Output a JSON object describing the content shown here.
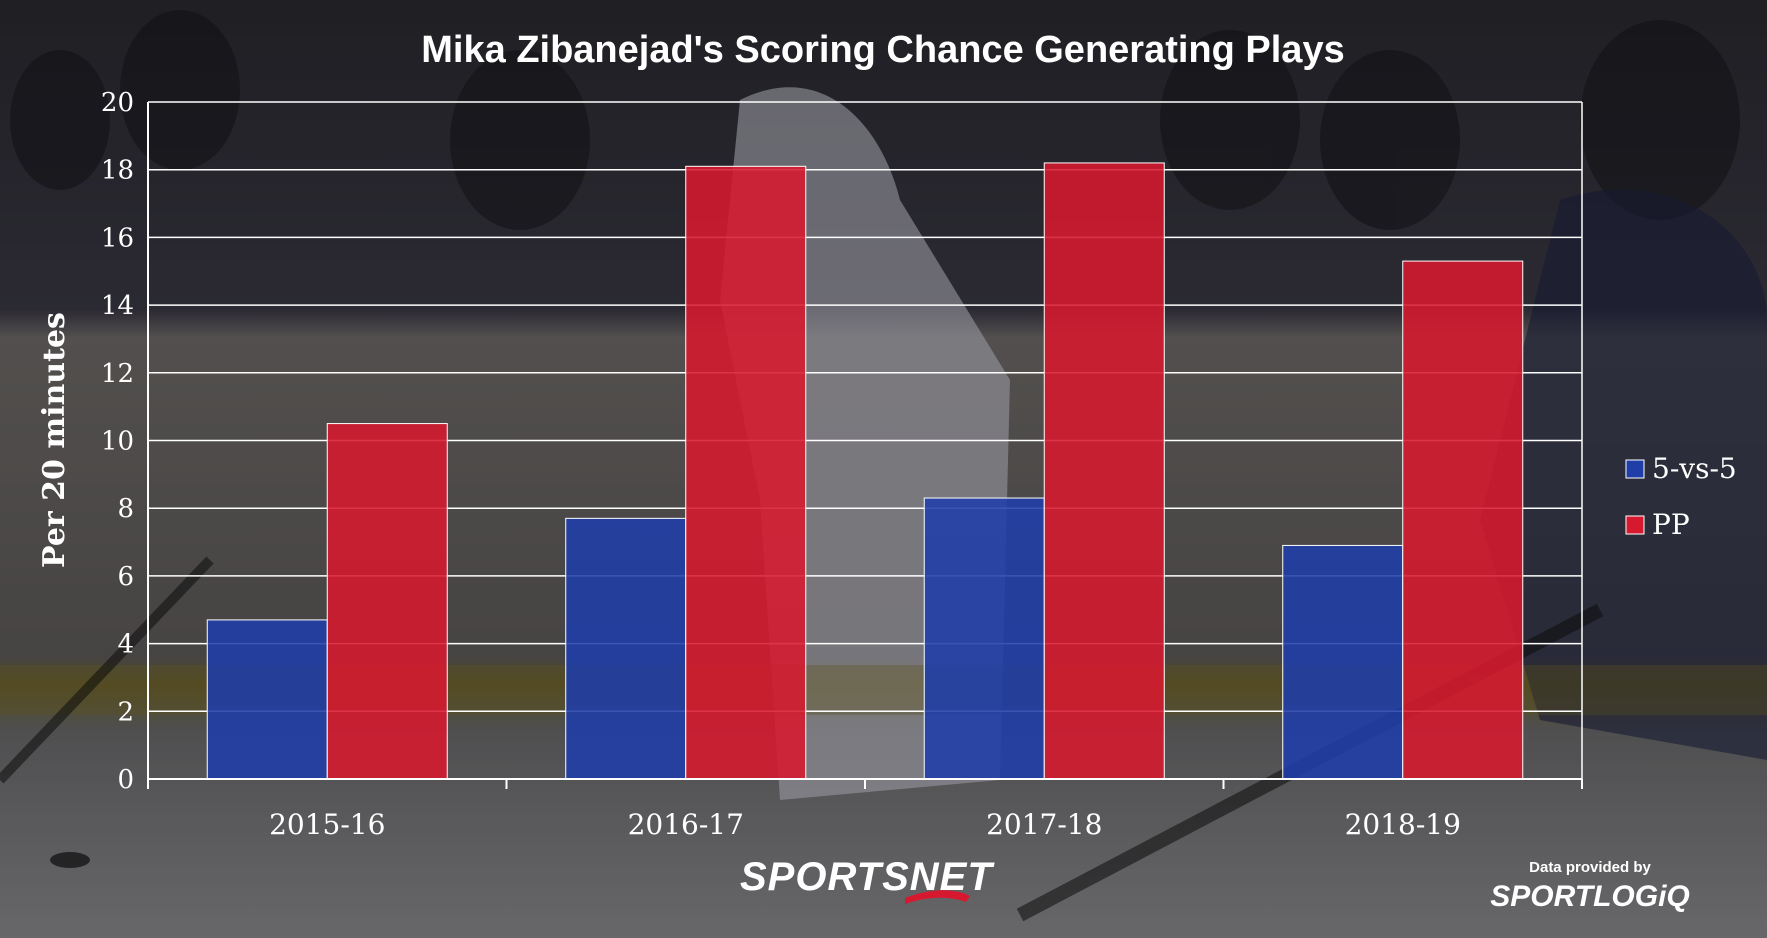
{
  "chart_data": {
    "type": "bar",
    "title": "Mika Zibanejad's Scoring Chance Generating Plays",
    "xlabel": "",
    "ylabel": "Per 20 minutes",
    "ylim": [
      0,
      20
    ],
    "yticks": [
      0,
      2,
      4,
      6,
      8,
      10,
      12,
      14,
      16,
      18,
      20
    ],
    "categories": [
      "2015-16",
      "2016-17",
      "2017-18",
      "2018-19"
    ],
    "series": [
      {
        "name": "5-vs-5",
        "color": "#1f3ea8",
        "values": [
          4.7,
          7.7,
          8.3,
          6.9
        ]
      },
      {
        "name": "PP",
        "color": "#d7192f",
        "values": [
          10.5,
          18.1,
          18.2,
          15.3
        ]
      }
    ],
    "grid": true,
    "legend_position": "right"
  },
  "credits": {
    "brand": "SPORTSNET",
    "data_provided_by": "Data provided by",
    "provider": "SPORTLOGiQ"
  }
}
